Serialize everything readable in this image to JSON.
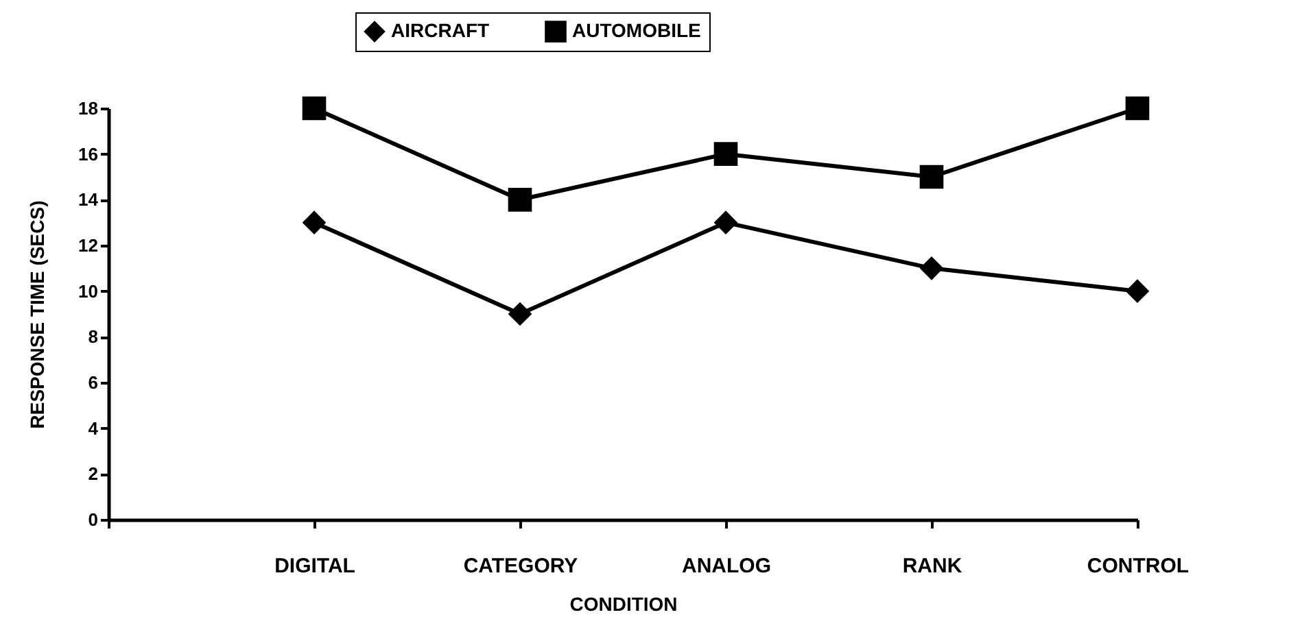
{
  "chart_data": {
    "type": "line",
    "xlabel": "CONDITION",
    "ylabel": "RESPONSE TIME (SECS)",
    "categories": [
      null,
      "DIGITAL",
      "CATEGORY",
      "ANALOG",
      "RANK",
      "CONTROL"
    ],
    "series": [
      {
        "name": "AIRCRAFT",
        "color": "#000000",
        "marker": "diamond",
        "values": [
          null,
          13,
          9,
          13,
          11,
          10
        ]
      },
      {
        "name": "AUTOMOBILE",
        "color": "#000000",
        "marker": "square",
        "values": [
          null,
          18,
          14,
          16,
          15,
          18
        ]
      }
    ],
    "ylim": [
      0,
      18
    ],
    "yticks": [
      0,
      2,
      4,
      6,
      8,
      10,
      12,
      14,
      16,
      18
    ],
    "grid": false,
    "legend": "top",
    "line_style": "solid"
  }
}
